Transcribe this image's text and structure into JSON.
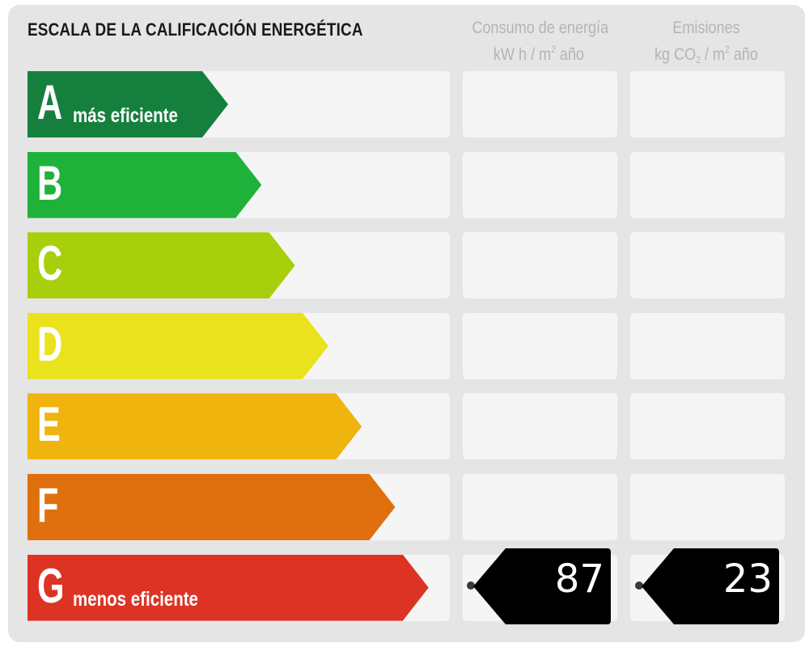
{
  "header": {
    "title": "ESCALA DE LA CALIFICACIÓN ENERGÉTICA",
    "energy_col": {
      "line1": "Consumo de energía",
      "unit_prefix": "kW h / m",
      "unit_sup": "2",
      "unit_suffix": " año"
    },
    "emissions_col": {
      "line1": "Emisiones",
      "unit_prefix": "kg CO",
      "unit_sub": "2",
      "unit_mid": " / m",
      "unit_sup": "2",
      "unit_suffix": " año"
    }
  },
  "classes": [
    {
      "letter": "A",
      "sublabel": "más eficiente",
      "color": "#15803d"
    },
    {
      "letter": "B",
      "sublabel": "",
      "color": "#1fb23a"
    },
    {
      "letter": "C",
      "sublabel": "",
      "color": "#a8cf0c"
    },
    {
      "letter": "D",
      "sublabel": "",
      "color": "#eae21c"
    },
    {
      "letter": "E",
      "sublabel": "",
      "color": "#f0b40e"
    },
    {
      "letter": "F",
      "sublabel": "",
      "color": "#e0700e"
    },
    {
      "letter": "G",
      "sublabel": "menos eficiente",
      "color": "#dd3324"
    }
  ],
  "rating": {
    "class": "G",
    "energy_value": "87",
    "emissions_value": "23"
  }
}
